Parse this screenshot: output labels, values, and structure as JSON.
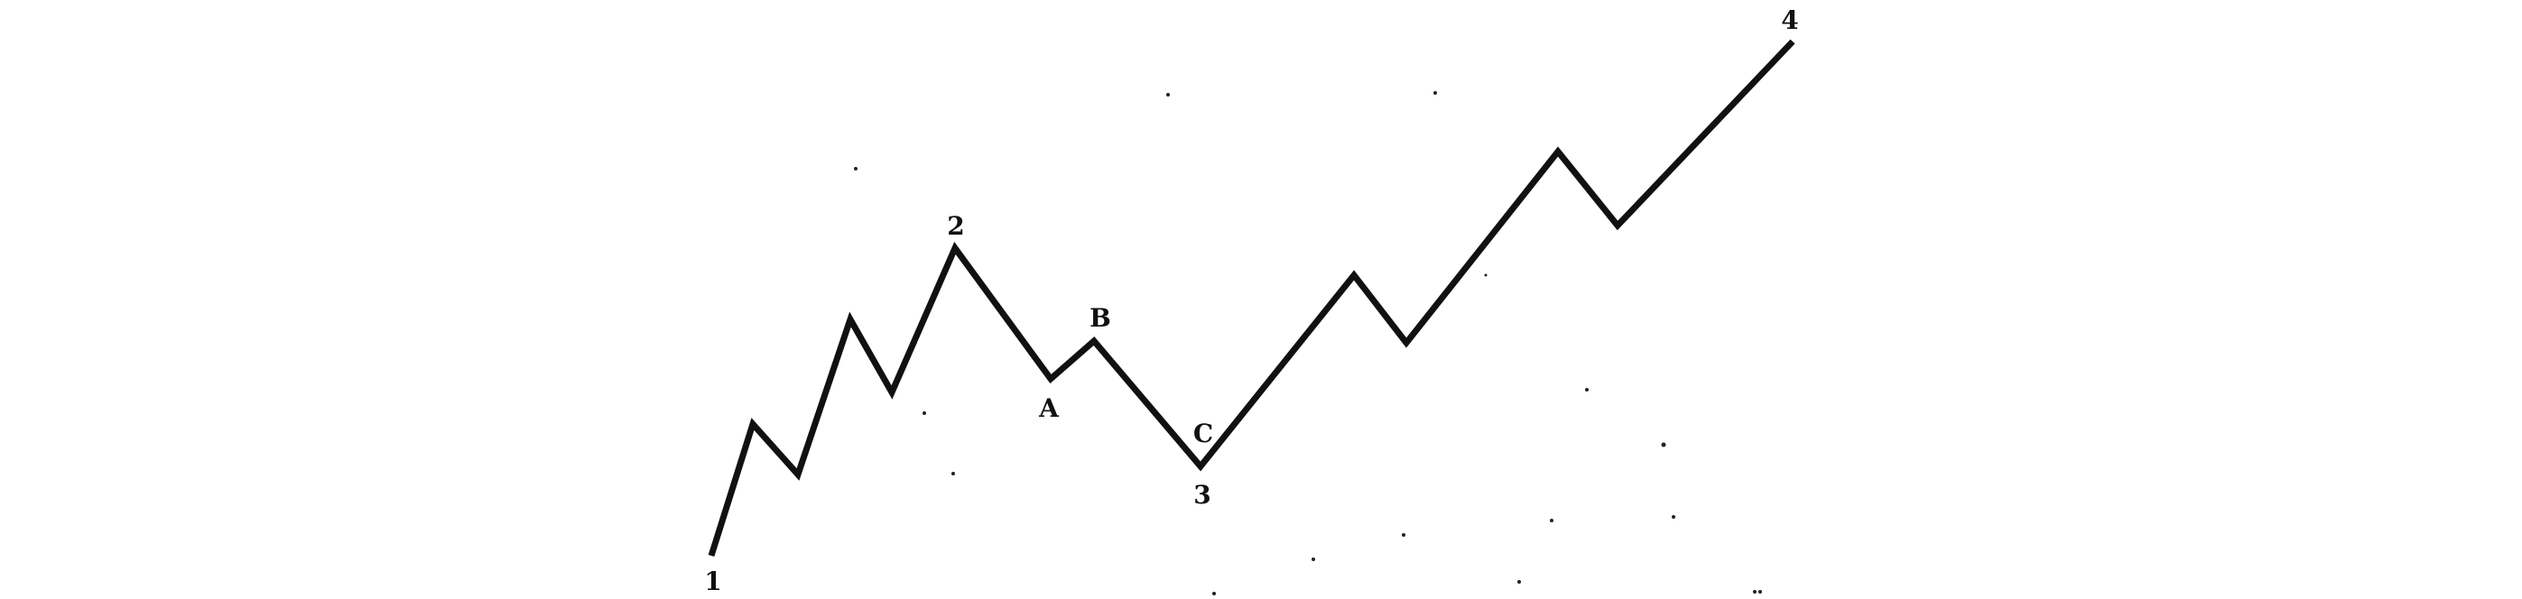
{
  "diagram": {
    "line_color": "#111111",
    "labels": {
      "p1": "1",
      "p2": "2",
      "p3": "3",
      "p4": "4",
      "pa": "A",
      "pb": "B",
      "pc": "C"
    }
  }
}
